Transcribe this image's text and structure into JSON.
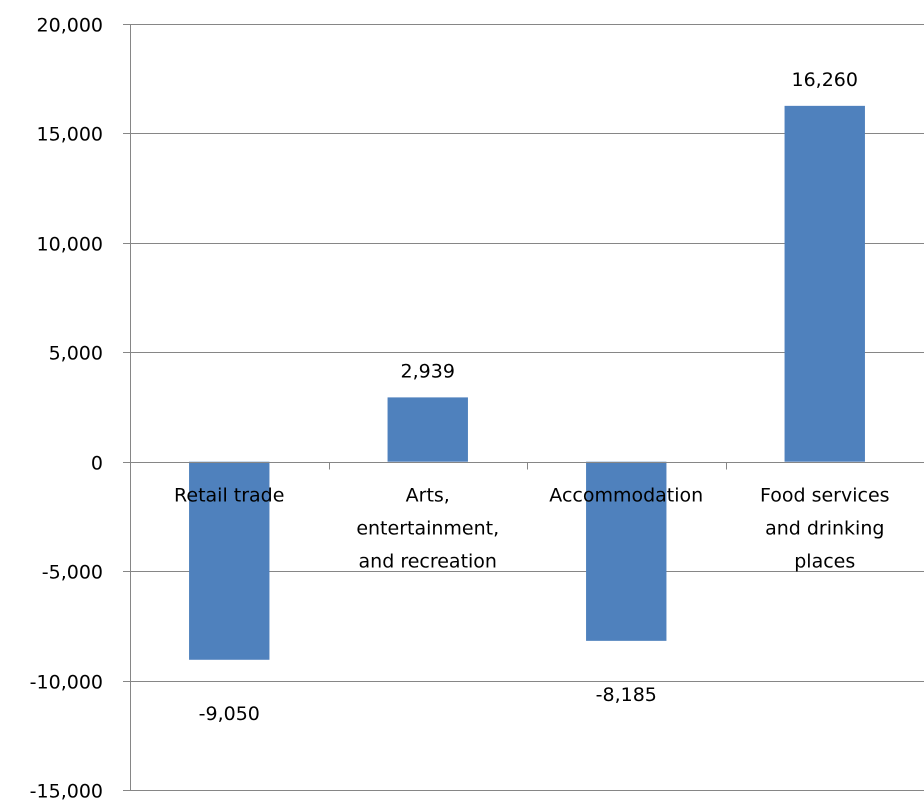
{
  "chart_data": {
    "type": "bar",
    "title": "",
    "xlabel": "",
    "ylabel": "",
    "ylim": [
      -15000,
      20000
    ],
    "yticks": [
      20000,
      15000,
      10000,
      5000,
      0,
      -5000,
      -10000,
      -15000
    ],
    "ytick_labels": [
      "20,000",
      "15,000",
      "10,000",
      "5,000",
      "0",
      "-5,000",
      "-10,000",
      "-15,000"
    ],
    "grid": true,
    "legend": "none",
    "bar_color": "#4F81BD",
    "categories": [
      [
        "Retail trade"
      ],
      [
        "Arts,",
        "entertainment,",
        "and recreation"
      ],
      [
        "Accommodation"
      ],
      [
        "Food services",
        "and drinking",
        "places"
      ]
    ],
    "values": [
      -9050,
      2939,
      -8185,
      16260
    ],
    "value_labels": [
      "-9,050",
      "2,939",
      "-8,185",
      "16,260"
    ]
  }
}
